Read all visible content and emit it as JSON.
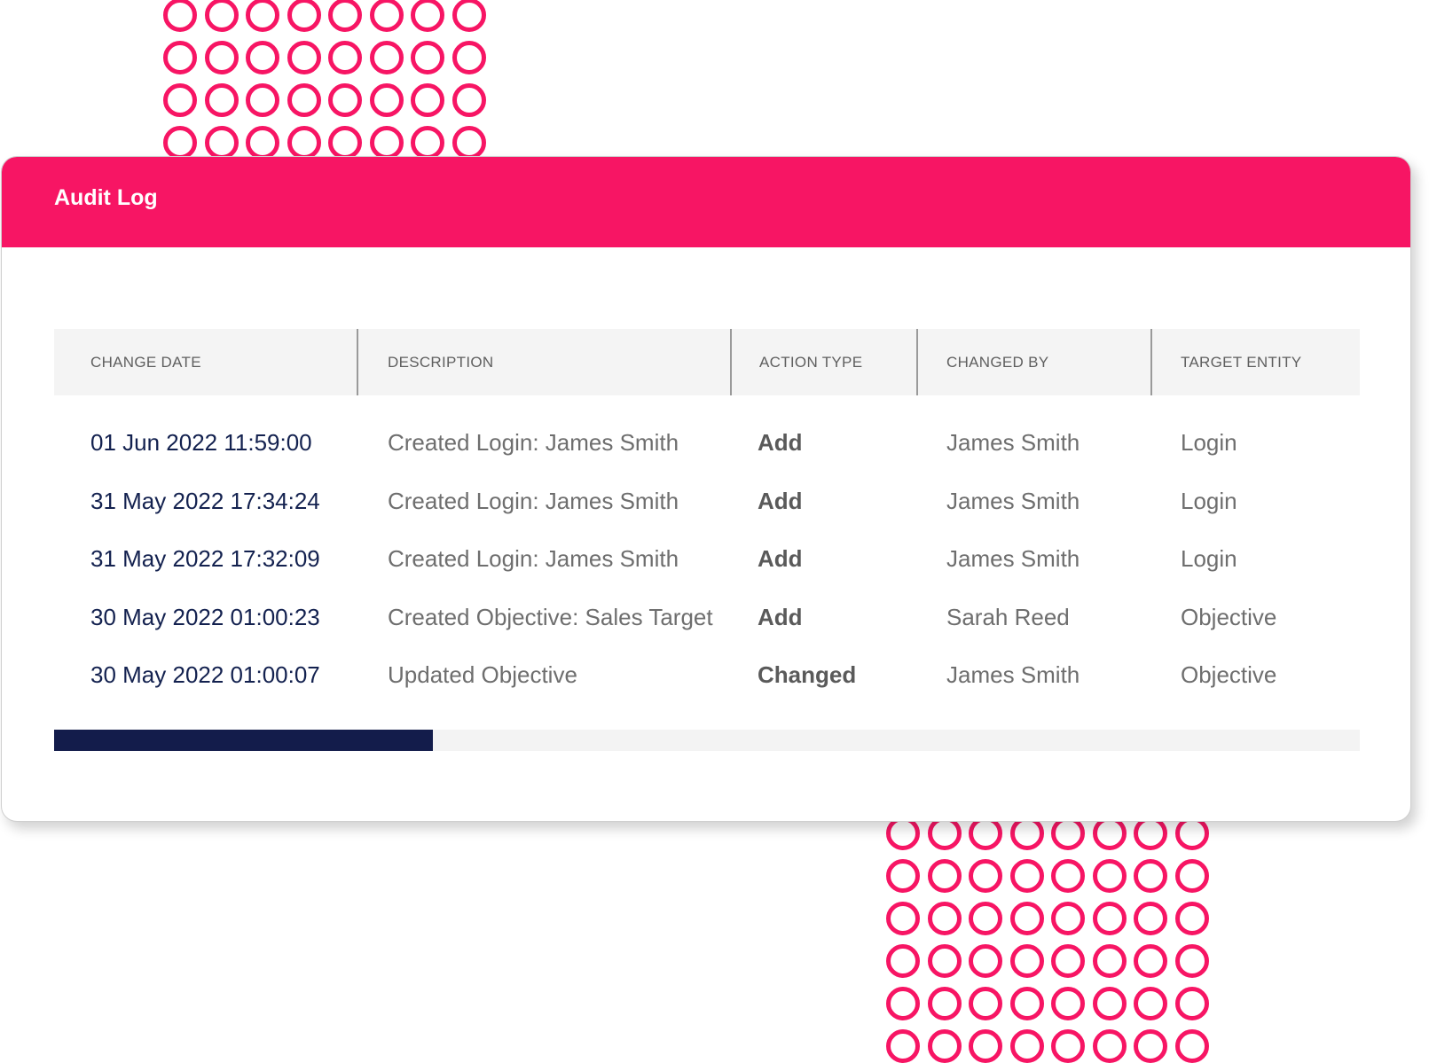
{
  "colors": {
    "accent": "#f71564",
    "date_text": "#13214f",
    "scroll_thumb": "#131c4b",
    "header_bg": "#f4f4f4"
  },
  "audit_log": {
    "title": "Audit Log",
    "columns": [
      "CHANGE DATE",
      "DESCRIPTION",
      "ACTION TYPE",
      "CHANGED BY",
      "TARGET ENTITY"
    ],
    "rows": [
      {
        "date": "01 Jun 2022 11:59:00",
        "description": "Created Login: James Smith",
        "action": "Add",
        "changed_by": "James Smith",
        "target": "Login"
      },
      {
        "date": "31 May 2022 17:34:24",
        "description": "Created Login: James Smith",
        "action": "Add",
        "changed_by": "James Smith",
        "target": "Login"
      },
      {
        "date": "31 May 2022 17:32:09",
        "description": "Created Login: James Smith",
        "action": "Add",
        "changed_by": "James Smith",
        "target": "Login"
      },
      {
        "date": "30 May 2022 01:00:23",
        "description": "Created Objective: Sales Target",
        "action": "Add",
        "changed_by": "Sarah Reed",
        "target": "Objective"
      },
      {
        "date": "30 May 2022 01:00:07",
        "description": "Updated Objective",
        "action": "Changed",
        "changed_by": "James Smith",
        "target": "Objective"
      }
    ],
    "scroll_position_fraction": 0.29
  }
}
